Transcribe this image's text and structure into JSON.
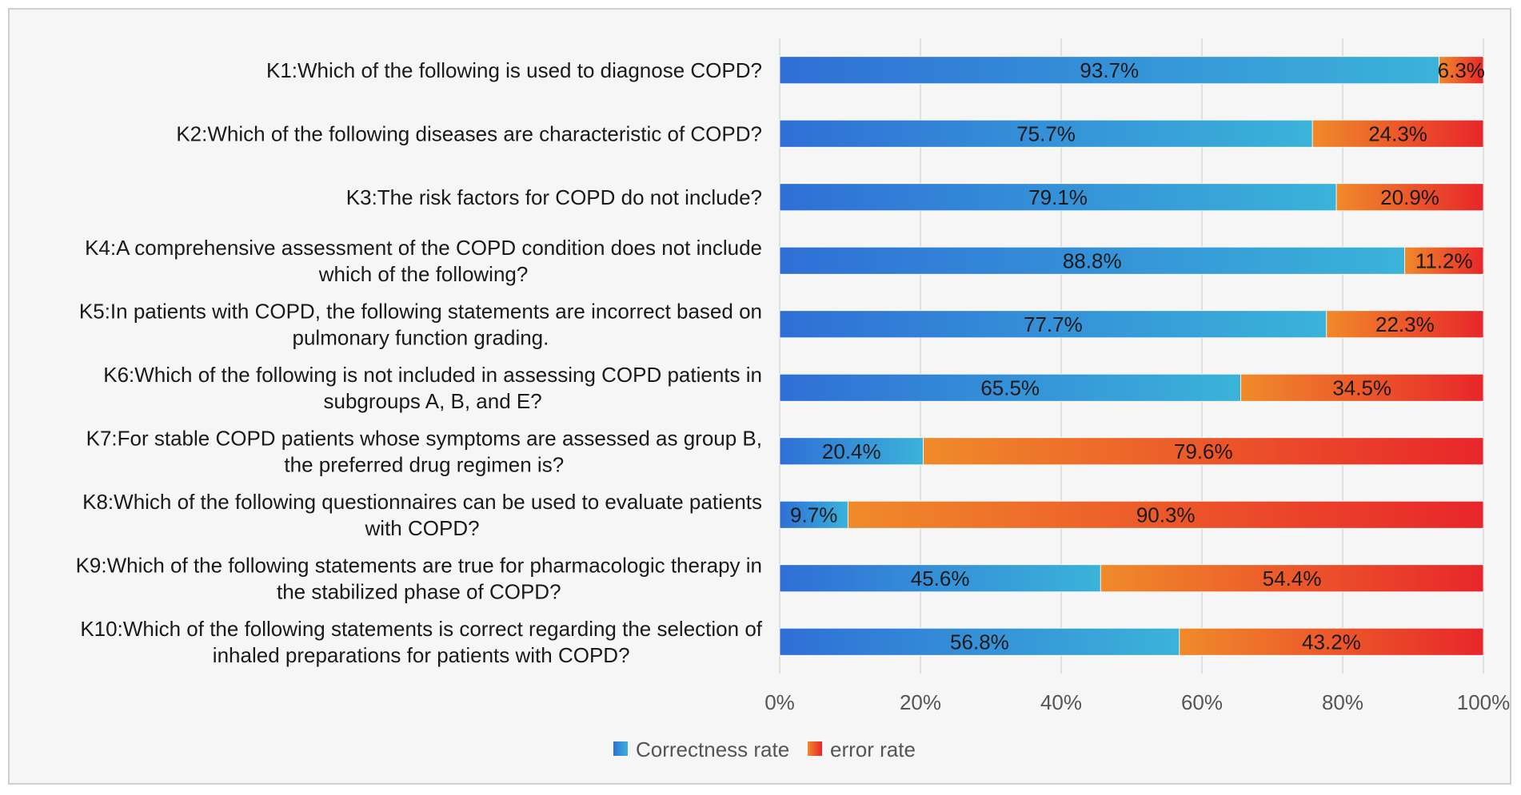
{
  "chart_data": {
    "type": "bar",
    "orientation": "horizontal",
    "stacked": "percent",
    "title": "",
    "xlabel": "",
    "ylabel": "",
    "xlim": [
      0,
      100
    ],
    "x_ticks": [
      "0%",
      "20%",
      "40%",
      "60%",
      "80%",
      "100%"
    ],
    "categories": [
      [
        "K1:Which of the following is used to diagnose COPD?"
      ],
      [
        "K2:Which of the following diseases are characteristic of COPD?"
      ],
      [
        "K3:The risk factors for COPD do not include?"
      ],
      [
        "K4:A comprehensive assessment of the COPD condition does not include",
        "which of the following?"
      ],
      [
        "K5:In patients with COPD, the following statements are incorrect based on",
        "pulmonary function grading."
      ],
      [
        "K6:Which of the following is not included in assessing COPD patients in",
        "subgroups A, B, and E?"
      ],
      [
        "K7:For stable COPD patients whose symptoms are assessed as group B,",
        "the preferred drug regimen is?"
      ],
      [
        "K8:Which of the following questionnaires can be used to evaluate patients",
        "with COPD?"
      ],
      [
        "K9:Which of the following statements are true for pharmacologic therapy in",
        "the stabilized phase of COPD?"
      ],
      [
        "K10:Which of the following statements is correct regarding the selection of",
        "inhaled preparations for patients with COPD?"
      ]
    ],
    "series": [
      {
        "name": "Correctness rate",
        "values": [
          93.7,
          75.7,
          79.1,
          88.8,
          77.7,
          65.5,
          20.4,
          9.7,
          45.6,
          56.8
        ],
        "labels": [
          "93.7%",
          "75.7%",
          "79.1%",
          "88.8%",
          "77.7%",
          "65.5%",
          "20.4%",
          "9.7%",
          "45.6%",
          "56.8%"
        ],
        "color_start": "#2f6fd6",
        "color_end": "#3ab3d9"
      },
      {
        "name": "error rate",
        "values": [
          6.3,
          24.3,
          20.9,
          11.2,
          22.3,
          34.5,
          79.6,
          90.3,
          54.4,
          43.2
        ],
        "labels": [
          "6.3%",
          "24.3%",
          "20.9%",
          "11.2%",
          "22.3%",
          "34.5%",
          "79.6%",
          "90.3%",
          "54.4%",
          "43.2%"
        ],
        "color_start": "#f08a2a",
        "color_end": "#e8262a"
      }
    ],
    "grid": true,
    "legend": "bottom-center"
  }
}
